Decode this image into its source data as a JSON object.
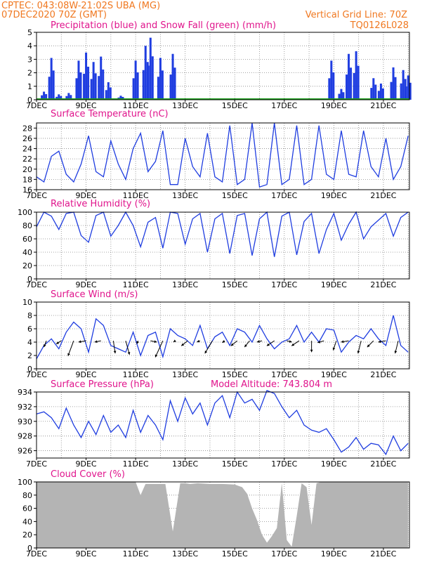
{
  "header": {
    "line1": "CPTEC:   043:08W-21:02S   UBA (MG)",
    "line2": "07DEC2020 70Z (GMT)",
    "grid_note": "Vertical Grid Line: 70Z",
    "run_code": "TQ0126L028"
  },
  "colors": {
    "header": "#f07820",
    "panel_title": "#e0148c",
    "series": "#1f3de0",
    "snow": "#1fa01f",
    "cloud": "#b4b4b4",
    "wind_arrow": "#000000"
  },
  "x_axis": {
    "start_label": "7DEC",
    "tick_labels": [
      "7DEC",
      "9DEC",
      "11DEC",
      "13DEC",
      "15DEC",
      "17DEC",
      "19DEC",
      "21DEC"
    ],
    "tick_days": [
      7,
      9,
      11,
      13,
      15,
      17,
      19,
      21
    ],
    "day_range": [
      7,
      22.05
    ]
  },
  "chart_data": [
    {
      "type": "bar",
      "title": "Precipitation (blue) and Snow Fall (green) (mm/h)",
      "ylim": [
        0,
        5
      ],
      "yticks": [
        0,
        1,
        2,
        3,
        4,
        5
      ],
      "series": [
        {
          "values_day": [
            7.3,
            7.6,
            7.9,
            8.3,
            8.7,
            9.0,
            9.3,
            9.6,
            9.9,
            10.4,
            11.0,
            11.4,
            11.6,
            12.0,
            12.5,
            18.9,
            19.3,
            19.6,
            19.9,
            20.6,
            20.9,
            21.4,
            21.8,
            22.0
          ],
          "values": [
            0.6,
            3.1,
            0.4,
            0.5,
            2.9,
            3.5,
            2.8,
            3.2,
            1.3,
            0.3,
            2.9,
            4.0,
            4.6,
            3.1,
            3.4,
            2.9,
            0.8,
            3.4,
            3.6,
            1.6,
            1.2,
            2.4,
            2.2,
            1.8
          ]
        }
      ]
    },
    {
      "type": "line",
      "title": "Surface Temperature (nC)",
      "ylim": [
        16,
        29
      ],
      "yticks": [
        16,
        18,
        20,
        22,
        24,
        26,
        28
      ],
      "x": [
        7.0,
        7.3,
        7.6,
        7.9,
        8.2,
        8.5,
        8.8,
        9.1,
        9.4,
        9.7,
        10.0,
        10.3,
        10.6,
        10.9,
        11.2,
        11.5,
        11.8,
        12.1,
        12.4,
        12.7,
        13.0,
        13.3,
        13.6,
        13.9,
        14.2,
        14.5,
        14.8,
        15.1,
        15.4,
        15.7,
        16.0,
        16.3,
        16.6,
        16.9,
        17.2,
        17.5,
        17.8,
        18.1,
        18.4,
        18.7,
        19.0,
        19.3,
        19.6,
        19.9,
        20.2,
        20.5,
        20.8,
        21.1,
        21.4,
        21.7,
        22.0
      ],
      "values": [
        18.5,
        17.5,
        22.5,
        23.5,
        19.0,
        17.5,
        21.0,
        26.5,
        19.5,
        18.5,
        25.5,
        21.0,
        18.0,
        24.0,
        27.0,
        19.5,
        21.5,
        27.5,
        17.0,
        17.0,
        26.0,
        20.5,
        18.5,
        27.0,
        18.5,
        17.5,
        28.5,
        17.0,
        18.0,
        29.0,
        16.5,
        17.0,
        29.0,
        17.0,
        18.0,
        28.5,
        17.0,
        18.0,
        28.5,
        19.0,
        18.0,
        27.5,
        19.0,
        18.5,
        27.5,
        20.5,
        18.5,
        26.0,
        18.0,
        20.5,
        26.5
      ]
    },
    {
      "type": "line",
      "title": "Relative Humidity (%)",
      "ylim": [
        0,
        100
      ],
      "yticks": [
        0,
        20,
        40,
        60,
        80,
        100
      ],
      "x": [
        7.0,
        7.3,
        7.6,
        7.9,
        8.2,
        8.5,
        8.8,
        9.1,
        9.4,
        9.7,
        10.0,
        10.3,
        10.6,
        10.9,
        11.2,
        11.5,
        11.8,
        12.1,
        12.4,
        12.7,
        13.0,
        13.3,
        13.6,
        13.9,
        14.2,
        14.5,
        14.8,
        15.1,
        15.4,
        15.7,
        16.0,
        16.3,
        16.6,
        16.9,
        17.2,
        17.5,
        17.8,
        18.1,
        18.4,
        18.7,
        19.0,
        19.3,
        19.6,
        19.9,
        20.2,
        20.5,
        20.8,
        21.1,
        21.4,
        21.7,
        22.0
      ],
      "values": [
        78,
        100,
        94,
        74,
        98,
        100,
        65,
        55,
        95,
        100,
        64,
        80,
        100,
        80,
        48,
        85,
        92,
        46,
        100,
        98,
        52,
        90,
        98,
        40,
        90,
        98,
        38,
        95,
        98,
        35,
        90,
        100,
        33,
        94,
        100,
        36,
        86,
        98,
        38,
        74,
        98,
        58,
        82,
        100,
        60,
        78,
        88,
        98,
        64,
        92,
        100
      ]
    },
    {
      "type": "line",
      "title": "Surface Wind (m/s)",
      "ylim": [
        0,
        10
      ],
      "yticks": [
        0,
        2,
        4,
        6,
        8,
        10
      ],
      "x": [
        7.0,
        7.3,
        7.6,
        7.9,
        8.2,
        8.5,
        8.8,
        9.1,
        9.4,
        9.7,
        10.0,
        10.3,
        10.6,
        10.9,
        11.2,
        11.5,
        11.8,
        12.1,
        12.4,
        12.7,
        13.0,
        13.3,
        13.6,
        13.9,
        14.2,
        14.5,
        14.8,
        15.1,
        15.4,
        15.7,
        16.0,
        16.3,
        16.6,
        16.9,
        17.2,
        17.5,
        17.8,
        18.1,
        18.4,
        18.7,
        19.0,
        19.3,
        19.6,
        19.9,
        20.2,
        20.5,
        20.8,
        21.1,
        21.4,
        21.7,
        22.0
      ],
      "values": [
        1.5,
        3.5,
        4.5,
        3.0,
        5.5,
        7.0,
        6.0,
        2.5,
        7.5,
        6.5,
        3.5,
        3.0,
        2.5,
        5.5,
        2.0,
        5.0,
        5.5,
        1.8,
        6.0,
        5.0,
        4.5,
        3.5,
        6.5,
        3.0,
        4.8,
        5.5,
        3.5,
        6.0,
        5.5,
        4.0,
        6.5,
        4.5,
        3.0,
        4.0,
        4.5,
        6.5,
        4.0,
        5.5,
        4.0,
        6.0,
        5.8,
        2.5,
        4.0,
        5.0,
        4.5,
        6.0,
        4.5,
        3.5,
        8.0,
        3.5,
        2.5
      ],
      "vectors": {
        "day": [
          7.4,
          8.0,
          8.5,
          9.0,
          9.6,
          10.1,
          10.6,
          11.1,
          11.6,
          12.1,
          12.6,
          13.1,
          13.6,
          14.1,
          14.6,
          15.1,
          15.6,
          16.1,
          16.6,
          17.1,
          17.6,
          18.1,
          18.6,
          19.1,
          19.6,
          20.1,
          20.6,
          21.1,
          21.6
        ],
        "u": [
          -0.4,
          -0.8,
          -0.9,
          -1.2,
          -1.0,
          0.3,
          0.6,
          -0.2,
          1.0,
          -1.2,
          -0.3,
          -1.0,
          -0.5,
          -1.2,
          -0.4,
          -1.0,
          -0.8,
          -0.8,
          -1.2,
          0.8,
          -1.2,
          0.0,
          -1.0,
          -0.5,
          -1.2,
          -0.5,
          -1.0,
          -1.2,
          -0.5
        ],
        "v": [
          -1.0,
          -0.5,
          -2.4,
          -0.2,
          -0.2,
          -2.0,
          -2.2,
          -0.5,
          -0.2,
          -2.6,
          -0.2,
          -0.8,
          -0.2,
          -2.0,
          -0.3,
          -0.8,
          -1.0,
          -0.2,
          -0.8,
          -0.2,
          -0.8,
          -1.8,
          -0.3,
          -1.5,
          -0.2,
          -2.0,
          -1.0,
          -0.2,
          -2.0
        ]
      }
    },
    {
      "type": "line",
      "title": "Surface Pressure (hPa)",
      "subtitle": "Model Altitude: 743.804 m",
      "ylim": [
        925,
        934
      ],
      "yticks": [
        926,
        928,
        930,
        932,
        934
      ],
      "x": [
        7.0,
        7.3,
        7.6,
        7.9,
        8.2,
        8.5,
        8.8,
        9.1,
        9.4,
        9.7,
        10.0,
        10.3,
        10.6,
        10.9,
        11.2,
        11.5,
        11.8,
        12.1,
        12.4,
        12.7,
        13.0,
        13.3,
        13.6,
        13.9,
        14.2,
        14.5,
        14.8,
        15.1,
        15.4,
        15.7,
        16.0,
        16.3,
        16.6,
        16.9,
        17.2,
        17.5,
        17.8,
        18.1,
        18.4,
        18.7,
        19.0,
        19.3,
        19.6,
        19.9,
        20.2,
        20.5,
        20.8,
        21.1,
        21.4,
        21.7,
        22.0
      ],
      "values": [
        931.0,
        931.3,
        930.5,
        929.0,
        931.8,
        929.5,
        927.8,
        930.0,
        928.2,
        930.8,
        928.5,
        929.5,
        927.8,
        931.5,
        928.5,
        930.8,
        929.5,
        927.5,
        932.8,
        930.0,
        933.2,
        931.0,
        932.5,
        929.5,
        932.5,
        933.5,
        930.5,
        934.0,
        932.5,
        933.0,
        931.5,
        934.2,
        933.8,
        932.0,
        930.5,
        931.5,
        929.5,
        928.8,
        928.5,
        929.0,
        927.5,
        925.8,
        926.5,
        927.8,
        926.2,
        927.0,
        926.8,
        925.5,
        928.0,
        926.0,
        927.0
      ]
    },
    {
      "type": "area",
      "title": "Cloud Cover (%)",
      "ylim": [
        0,
        100
      ],
      "yticks": [
        0,
        20,
        40,
        60,
        80,
        100
      ],
      "x": [
        7.0,
        7.5,
        8.0,
        8.5,
        9.0,
        9.5,
        10.0,
        10.5,
        11.0,
        11.2,
        11.4,
        11.8,
        12.2,
        12.5,
        12.8,
        13.0,
        13.2,
        13.5,
        14.0,
        14.5,
        15.0,
        15.3,
        15.5,
        15.7,
        15.9,
        16.1,
        16.3,
        16.5,
        16.7,
        16.9,
        17.1,
        17.3,
        17.5,
        17.7,
        17.9,
        18.1,
        18.3,
        18.5,
        19.0,
        19.5,
        20.0,
        20.5,
        21.0,
        21.5,
        22.0
      ],
      "values": [
        100,
        100,
        100,
        100,
        100,
        100,
        100,
        100,
        100,
        80,
        97,
        97,
        97,
        25,
        98,
        98,
        97,
        98,
        97,
        97,
        96,
        92,
        82,
        60,
        42,
        20,
        8,
        18,
        30,
        98,
        12,
        2,
        48,
        98,
        92,
        35,
        98,
        100,
        100,
        100,
        100,
        100,
        100,
        100,
        100
      ]
    }
  ]
}
